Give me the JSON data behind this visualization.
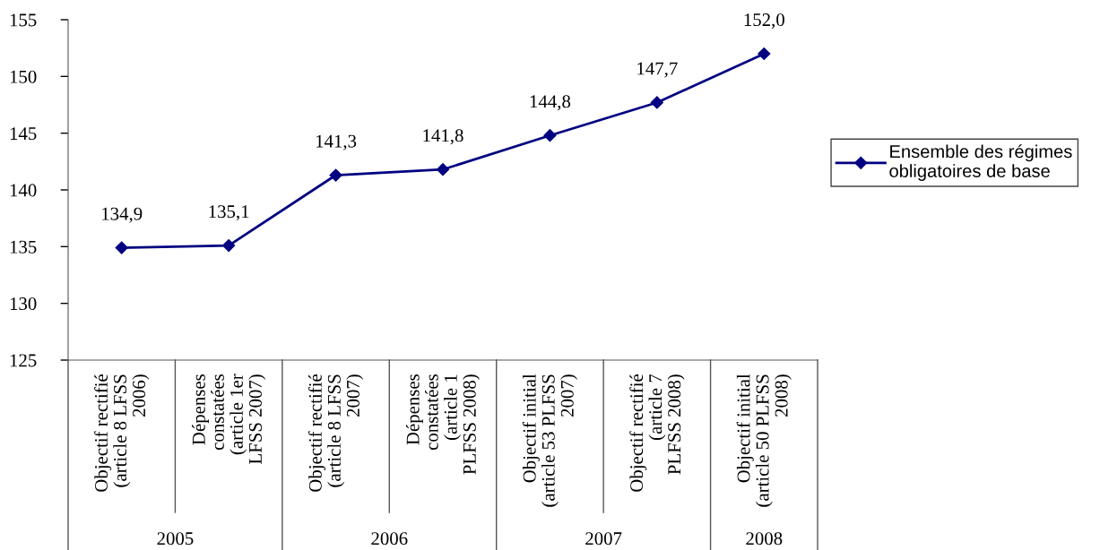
{
  "chart_data": {
    "type": "line",
    "categories": [
      "Objectif rectifié\n(article 8 LFSS\n2006)",
      "Dépenses\nconstatées\n(article 1er\nLFSS 2007)",
      "Objectif rectifié\n(article 8 LFSS\n2007)",
      "Dépenses\nconstatées\n(article 1\nPLFSS 2008)",
      "Objectif initial\n(article 53 PLFSS\n2007)",
      "Objectif rectifié\n(article 7\nPLFSS 2008)",
      "Objectif initial\n(article 50 PLFSS\n2008)"
    ],
    "series": [
      {
        "name": "Ensemble des régimes\nobligatoires de base",
        "color": "#000080",
        "values": [
          134.9,
          135.1,
          141.3,
          141.8,
          144.8,
          147.7,
          152.0
        ],
        "value_labels": [
          "134,9",
          "135,1",
          "141,3",
          "141,8",
          "144,8",
          "147,7",
          "152,0"
        ]
      }
    ],
    "ylim": [
      125,
      155
    ],
    "yticks": [
      125,
      130,
      135,
      140,
      145,
      150,
      155
    ],
    "legend": "right",
    "marker": "diamond",
    "line_style": "solid",
    "annotations": [
      "2005",
      "2006",
      "2007",
      "2008"
    ]
  }
}
